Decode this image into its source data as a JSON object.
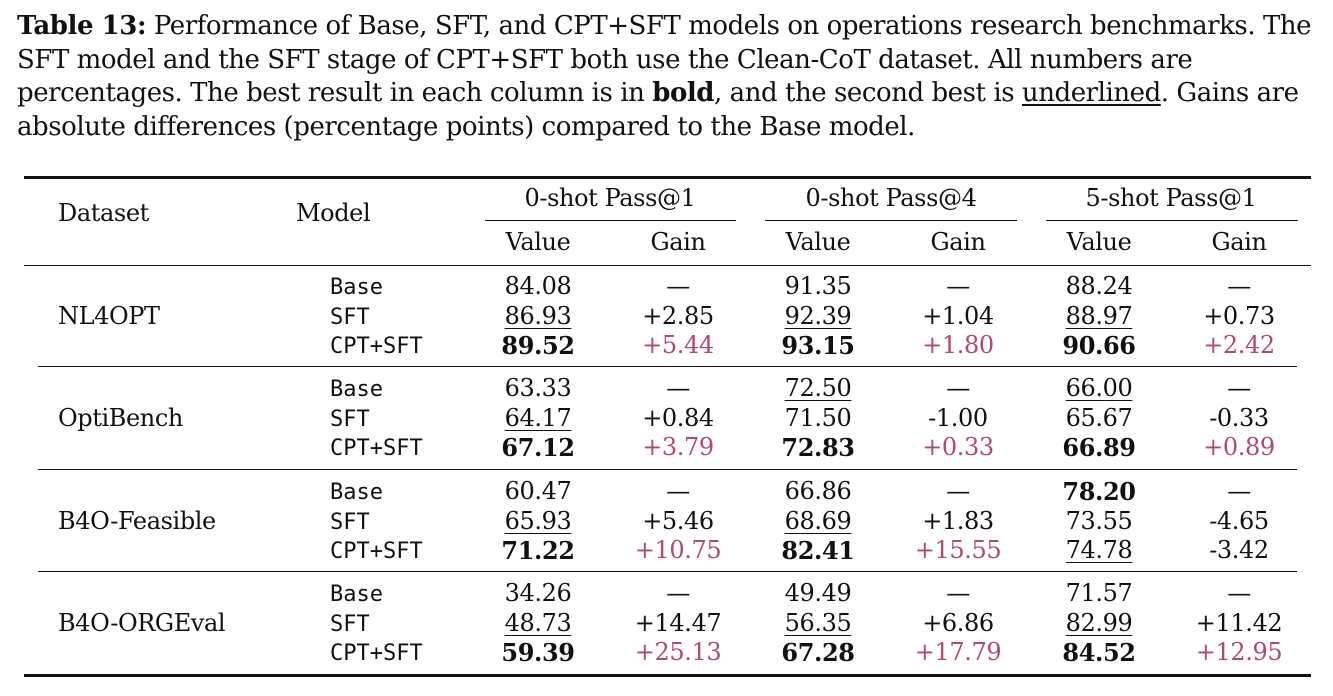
{
  "caption": {
    "label": "Table 13:",
    "text_1": " Performance of Base, SFT, and CPT+SFT models on operations research benchmarks. The SFT model and the SFT stage of CPT+SFT both use the Clean-CoT dataset. All numbers are percentages. The best result in each column is in ",
    "bold_word": "bold",
    "text_2": ", and the second best is ",
    "underlined_word": "underlined",
    "text_3": ". Gains are absolute differences (percentage points) compared to the Base model."
  },
  "header": {
    "dataset": "Dataset",
    "model": "Model",
    "groups": [
      "0-shot Pass@1",
      "0-shot Pass@4",
      "5-shot Pass@1"
    ],
    "value": "Value",
    "gain": "Gain"
  },
  "blocks": [
    {
      "dataset": "NL4OPT",
      "rows": [
        {
          "model": "Base",
          "cells": [
            [
              "84.08",
              ""
            ],
            [
              "—",
              ""
            ],
            [
              "91.35",
              ""
            ],
            [
              "—",
              ""
            ],
            [
              "88.24",
              ""
            ],
            [
              "—",
              ""
            ]
          ]
        },
        {
          "model": "SFT",
          "cells": [
            [
              "86.93",
              "u"
            ],
            [
              "+2.85",
              ""
            ],
            [
              "92.39",
              "u"
            ],
            [
              "+1.04",
              ""
            ],
            [
              "88.97",
              "u"
            ],
            [
              "+0.73",
              ""
            ]
          ]
        },
        {
          "model": "CPT+SFT",
          "cells": [
            [
              "89.52",
              "b"
            ],
            [
              "+5.44",
              "c"
            ],
            [
              "93.15",
              "b"
            ],
            [
              "+1.80",
              "c"
            ],
            [
              "90.66",
              "b"
            ],
            [
              "+2.42",
              "c"
            ]
          ]
        }
      ]
    },
    {
      "dataset": "OptiBench",
      "rows": [
        {
          "model": "Base",
          "cells": [
            [
              "63.33",
              ""
            ],
            [
              "—",
              ""
            ],
            [
              "72.50",
              "u"
            ],
            [
              "—",
              ""
            ],
            [
              "66.00",
              "u"
            ],
            [
              "—",
              ""
            ]
          ]
        },
        {
          "model": "SFT",
          "cells": [
            [
              "64.17",
              "u"
            ],
            [
              "+0.84",
              ""
            ],
            [
              "71.50",
              ""
            ],
            [
              "-1.00",
              ""
            ],
            [
              "65.67",
              ""
            ],
            [
              "-0.33",
              ""
            ]
          ]
        },
        {
          "model": "CPT+SFT",
          "cells": [
            [
              "67.12",
              "b"
            ],
            [
              "+3.79",
              "c"
            ],
            [
              "72.83",
              "b"
            ],
            [
              "+0.33",
              "c"
            ],
            [
              "66.89",
              "b"
            ],
            [
              "+0.89",
              "c"
            ]
          ]
        }
      ]
    },
    {
      "dataset": "B4O-Feasible",
      "rows": [
        {
          "model": "Base",
          "cells": [
            [
              "60.47",
              ""
            ],
            [
              "—",
              ""
            ],
            [
              "66.86",
              ""
            ],
            [
              "—",
              ""
            ],
            [
              "78.20",
              "b"
            ],
            [
              "—",
              ""
            ]
          ]
        },
        {
          "model": "SFT",
          "cells": [
            [
              "65.93",
              "u"
            ],
            [
              "+5.46",
              ""
            ],
            [
              "68.69",
              "u"
            ],
            [
              "+1.83",
              ""
            ],
            [
              "73.55",
              ""
            ],
            [
              "-4.65",
              ""
            ]
          ]
        },
        {
          "model": "CPT+SFT",
          "cells": [
            [
              "71.22",
              "b"
            ],
            [
              "+10.75",
              "c"
            ],
            [
              "82.41",
              "b"
            ],
            [
              "+15.55",
              "c"
            ],
            [
              "74.78",
              "u"
            ],
            [
              "-3.42",
              ""
            ]
          ]
        }
      ]
    },
    {
      "dataset": "B4O-ORGEval",
      "rows": [
        {
          "model": "Base",
          "cells": [
            [
              "34.26",
              ""
            ],
            [
              "—",
              ""
            ],
            [
              "49.49",
              ""
            ],
            [
              "—",
              ""
            ],
            [
              "71.57",
              ""
            ],
            [
              "—",
              ""
            ]
          ]
        },
        {
          "model": "SFT",
          "cells": [
            [
              "48.73",
              "u"
            ],
            [
              "+14.47",
              ""
            ],
            [
              "56.35",
              "u"
            ],
            [
              "+6.86",
              ""
            ],
            [
              "82.99",
              "u"
            ],
            [
              "+11.42",
              ""
            ]
          ]
        },
        {
          "model": "CPT+SFT",
          "cells": [
            [
              "59.39",
              "b"
            ],
            [
              "+25.13",
              "c"
            ],
            [
              "67.28",
              "b"
            ],
            [
              "+17.79",
              "c"
            ],
            [
              "84.52",
              "b"
            ],
            [
              "+12.95",
              "c"
            ]
          ]
        }
      ]
    }
  ]
}
